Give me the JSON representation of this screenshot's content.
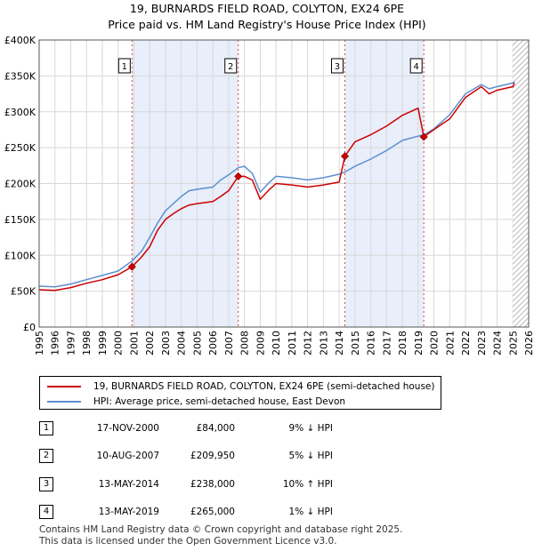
{
  "chart_data": {
    "type": "line",
    "title": "19, BURNARDS FIELD ROAD, COLYTON, EX24 6PE",
    "subtitle": "Price paid vs. HM Land Registry's House Price Index (HPI)",
    "xlabel": "",
    "ylabel": "",
    "xlim": [
      1995,
      2026
    ],
    "ylim": [
      0,
      400000
    ],
    "y_ticks": [
      {
        "value": 0,
        "label": "£0"
      },
      {
        "value": 50000,
        "label": "£50K"
      },
      {
        "value": 100000,
        "label": "£100K"
      },
      {
        "value": 150000,
        "label": "£150K"
      },
      {
        "value": 200000,
        "label": "£200K"
      },
      {
        "value": 250000,
        "label": "£250K"
      },
      {
        "value": 300000,
        "label": "£300K"
      },
      {
        "value": 350000,
        "label": "£350K"
      },
      {
        "value": 400000,
        "label": "£400K"
      }
    ],
    "x_ticks": [
      "1995",
      "1996",
      "1997",
      "1998",
      "1999",
      "2000",
      "2001",
      "2002",
      "2003",
      "2004",
      "2005",
      "2006",
      "2007",
      "2008",
      "2009",
      "2010",
      "2011",
      "2012",
      "2013",
      "2014",
      "2015",
      "2016",
      "2017",
      "2018",
      "2019",
      "2020",
      "2021",
      "2022",
      "2023",
      "2024",
      "2025",
      "2026"
    ],
    "forecast_start": 2025.0,
    "shaded_spans": [
      [
        2000.88,
        2007.61
      ],
      [
        2014.36,
        2019.36
      ]
    ],
    "series": [
      {
        "name": "19, BURNARDS FIELD ROAD, COLYTON, EX24 6PE (semi-detached house)",
        "color": "#cc0000",
        "points": [
          [
            1995.0,
            52000
          ],
          [
            1996.0,
            51000
          ],
          [
            1997.0,
            55000
          ],
          [
            1998.0,
            61000
          ],
          [
            1999.0,
            66000
          ],
          [
            2000.0,
            73000
          ],
          [
            2000.88,
            84000
          ],
          [
            2001.5,
            98000
          ],
          [
            2002.0,
            112000
          ],
          [
            2002.5,
            135000
          ],
          [
            2003.0,
            150000
          ],
          [
            2003.5,
            158000
          ],
          [
            2004.0,
            165000
          ],
          [
            2004.5,
            170000
          ],
          [
            2005.0,
            172000
          ],
          [
            2006.0,
            175000
          ],
          [
            2006.5,
            182000
          ],
          [
            2007.0,
            190000
          ],
          [
            2007.61,
            209950
          ],
          [
            2008.0,
            210000
          ],
          [
            2008.5,
            205000
          ],
          [
            2009.0,
            178000
          ],
          [
            2009.5,
            190000
          ],
          [
            2010.0,
            200000
          ],
          [
            2011.0,
            198000
          ],
          [
            2012.0,
            195000
          ],
          [
            2013.0,
            198000
          ],
          [
            2014.0,
            202000
          ],
          [
            2014.36,
            238000
          ],
          [
            2015.0,
            258000
          ],
          [
            2016.0,
            268000
          ],
          [
            2017.0,
            280000
          ],
          [
            2018.0,
            295000
          ],
          [
            2019.0,
            305000
          ],
          [
            2019.36,
            265000
          ],
          [
            2020.0,
            275000
          ],
          [
            2021.0,
            290000
          ],
          [
            2022.0,
            320000
          ],
          [
            2023.0,
            335000
          ],
          [
            2023.5,
            325000
          ],
          [
            2024.0,
            330000
          ],
          [
            2025.0,
            335000
          ],
          [
            2025.1,
            340000
          ]
        ]
      },
      {
        "name": "HPI: Average price, semi-detached house, East Devon",
        "color": "#5b8fd0",
        "points": [
          [
            1995.0,
            57000
          ],
          [
            1996.0,
            56000
          ],
          [
            1997.0,
            60000
          ],
          [
            1998.0,
            66000
          ],
          [
            1999.0,
            72000
          ],
          [
            2000.0,
            78000
          ],
          [
            2000.88,
            92000
          ],
          [
            2001.5,
            106000
          ],
          [
            2002.0,
            125000
          ],
          [
            2002.5,
            145000
          ],
          [
            2003.0,
            162000
          ],
          [
            2003.5,
            172000
          ],
          [
            2004.0,
            182000
          ],
          [
            2004.5,
            190000
          ],
          [
            2005.0,
            192000
          ],
          [
            2006.0,
            195000
          ],
          [
            2006.5,
            205000
          ],
          [
            2007.0,
            212000
          ],
          [
            2007.61,
            222000
          ],
          [
            2008.0,
            224000
          ],
          [
            2008.5,
            214000
          ],
          [
            2009.0,
            188000
          ],
          [
            2009.5,
            200000
          ],
          [
            2010.0,
            210000
          ],
          [
            2011.0,
            208000
          ],
          [
            2012.0,
            205000
          ],
          [
            2013.0,
            208000
          ],
          [
            2014.0,
            213000
          ],
          [
            2014.36,
            216000
          ],
          [
            2015.0,
            224000
          ],
          [
            2016.0,
            234000
          ],
          [
            2017.0,
            246000
          ],
          [
            2018.0,
            260000
          ],
          [
            2019.0,
            266000
          ],
          [
            2019.36,
            268000
          ],
          [
            2020.0,
            276000
          ],
          [
            2021.0,
            296000
          ],
          [
            2022.0,
            325000
          ],
          [
            2023.0,
            338000
          ],
          [
            2023.5,
            332000
          ],
          [
            2024.0,
            335000
          ],
          [
            2025.0,
            340000
          ],
          [
            2025.1,
            342000
          ]
        ]
      }
    ],
    "sales": [
      {
        "id": "1",
        "x": 2000.88,
        "value": 84000
      },
      {
        "id": "2",
        "x": 2007.61,
        "value": 209950
      },
      {
        "id": "3",
        "x": 2014.36,
        "value": 238000
      },
      {
        "id": "4",
        "x": 2019.36,
        "value": 265000
      }
    ]
  },
  "legend": {
    "entry1": "19, BURNARDS FIELD ROAD, COLYTON, EX24 6PE (semi-detached house)",
    "entry2": "HPI: Average price, semi-detached house, East Devon"
  },
  "sales_table": [
    {
      "num": "1",
      "date": "17-NOV-2000",
      "price": "£84,000",
      "hpi": "9% ↓ HPI"
    },
    {
      "num": "2",
      "date": "10-AUG-2007",
      "price": "£209,950",
      "hpi": "5% ↓ HPI"
    },
    {
      "num": "3",
      "date": "13-MAY-2014",
      "price": "£238,000",
      "hpi": "10% ↑ HPI"
    },
    {
      "num": "4",
      "date": "13-MAY-2019",
      "price": "£265,000",
      "hpi": "1% ↓ HPI"
    }
  ],
  "footer": {
    "line1": "Contains HM Land Registry data © Crown copyright and database right 2025.",
    "line2": "This data is licensed under the Open Government Licence v3.0."
  }
}
